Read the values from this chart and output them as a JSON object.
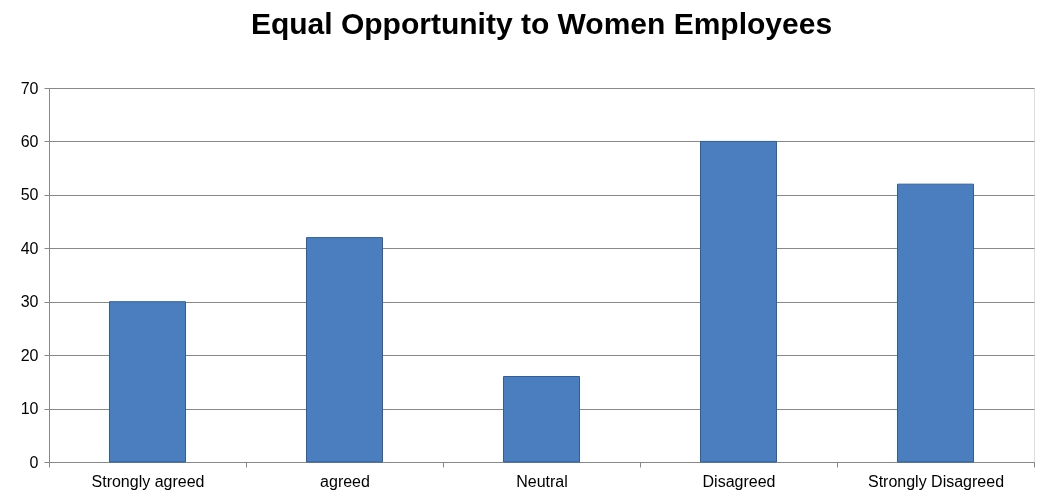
{
  "chart_data": {
    "type": "bar",
    "title": "Equal Opportunity to Women Employees",
    "categories": [
      "Strongly agreed",
      "agreed",
      "Neutral",
      "Disagreed",
      "Strongly Disagreed"
    ],
    "values": [
      30,
      42,
      16,
      60,
      52
    ],
    "color": "#4a7ebf",
    "ylim": [
      0,
      70
    ],
    "yticks": [
      0,
      10,
      20,
      30,
      40,
      50,
      60,
      70
    ],
    "grid": "y"
  }
}
